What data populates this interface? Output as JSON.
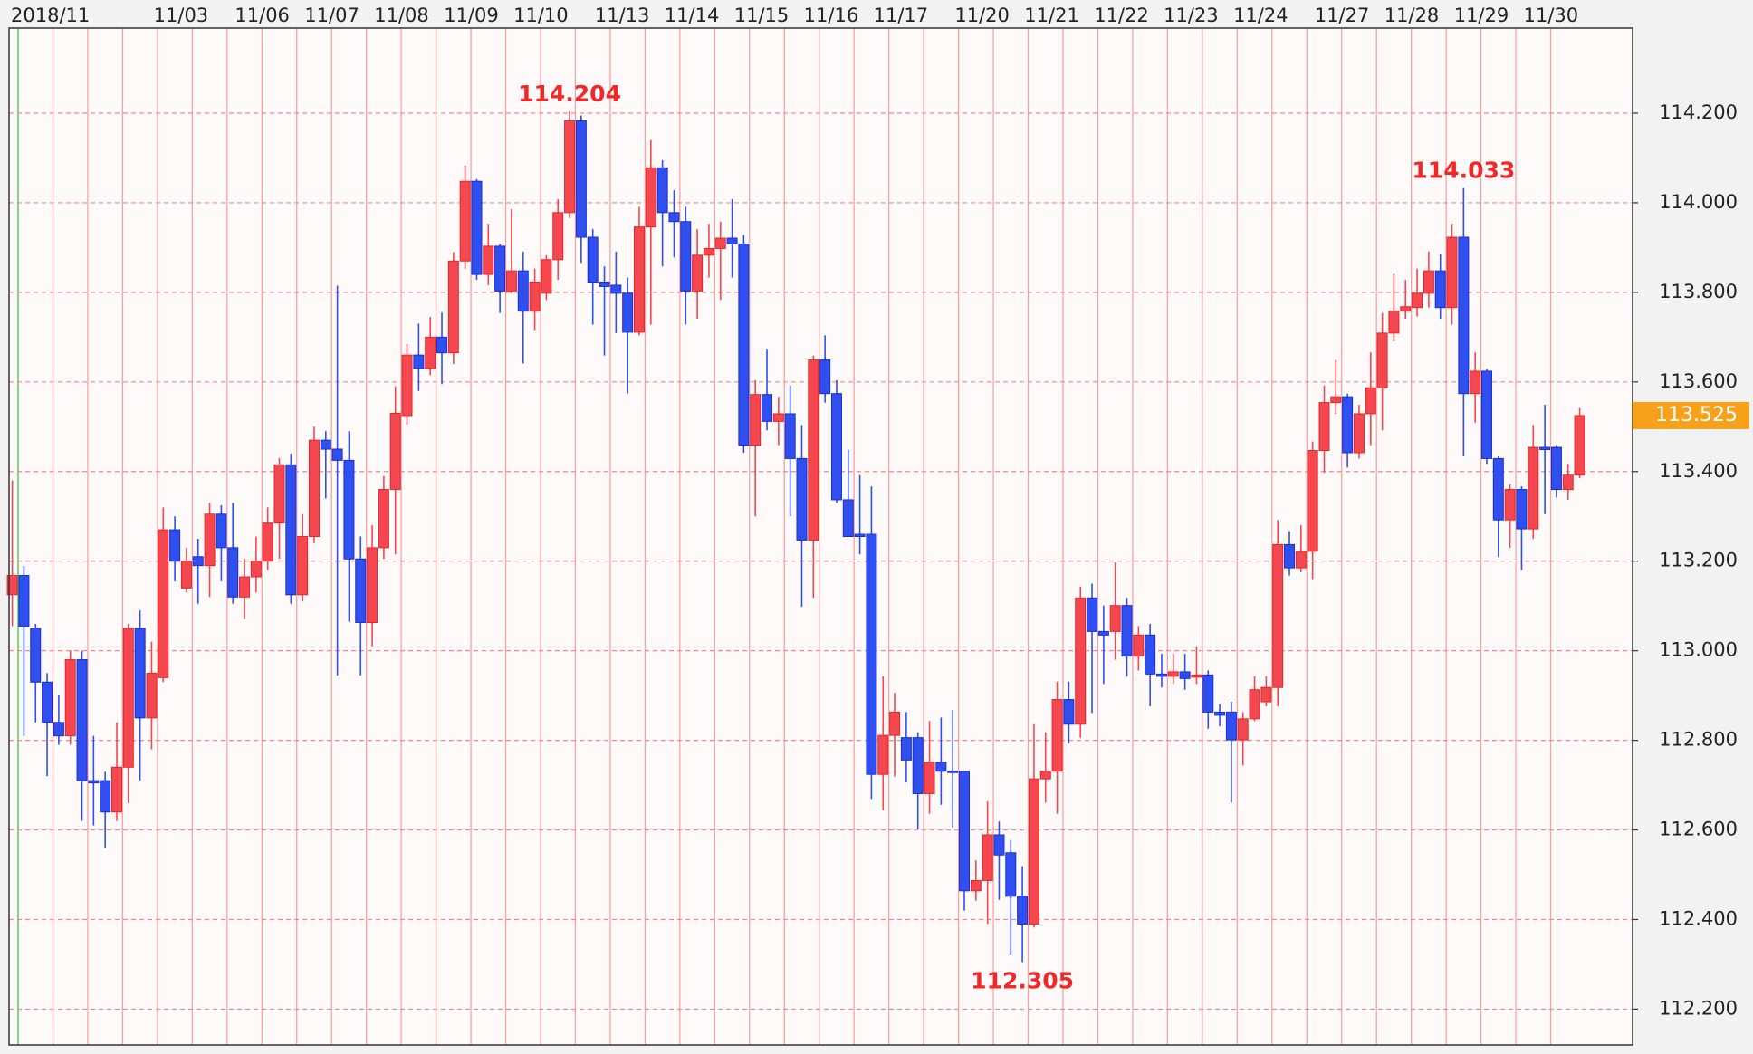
{
  "chart_data": {
    "type": "candlestick",
    "categories": [
      "2018/11",
      null,
      null,
      null,
      null,
      null,
      null,
      null,
      null,
      null,
      null,
      "11/03",
      null,
      null,
      null,
      null,
      null,
      null,
      "11/06",
      null,
      null,
      null,
      null,
      null,
      "11/07",
      null,
      null,
      null,
      null,
      null,
      "11/08",
      null,
      null,
      null,
      null,
      null,
      "11/09",
      null,
      null,
      null,
      null,
      null,
      "11/10",
      null,
      null,
      null,
      null,
      null,
      null,
      "11/13",
      null,
      null,
      null,
      null,
      null,
      "11/14",
      null,
      null,
      null,
      null,
      null,
      "11/15",
      null,
      null,
      null,
      null,
      null,
      "11/16",
      null,
      null,
      null,
      null,
      null,
      "11/17",
      null,
      null,
      null,
      null,
      null,
      null,
      "11/20",
      null,
      null,
      null,
      null,
      null,
      "11/21",
      null,
      null,
      null,
      null,
      null,
      "11/22",
      null,
      null,
      null,
      null,
      null,
      "11/23",
      null,
      null,
      null,
      null,
      null,
      "11/24",
      null,
      null,
      null,
      null,
      null,
      null,
      "11/27",
      null,
      null,
      null,
      null,
      null,
      "11/28",
      null,
      null,
      null,
      null,
      null,
      "11/29",
      null,
      null,
      null,
      null,
      null,
      "11/30",
      null,
      null,
      null,
      null,
      null,
      null
    ],
    "open": [
      113.125,
      113.168,
      113.05,
      112.93,
      112.84,
      112.81,
      112.98,
      112.71,
      112.71,
      112.64,
      112.74,
      113.05,
      112.85,
      112.94,
      113.27,
      113.14,
      113.21,
      113.19,
      113.305,
      113.23,
      113.12,
      113.165,
      113.2,
      113.285,
      113.415,
      113.125,
      113.255,
      113.47,
      113.45,
      113.425,
      113.205,
      113.063,
      113.23,
      113.36,
      113.525,
      113.66,
      113.63,
      113.7,
      113.665,
      113.87,
      114.048,
      113.84,
      113.903,
      113.803,
      113.848,
      113.758,
      113.798,
      113.873,
      113.978,
      114.183,
      113.923,
      113.823,
      113.816,
      113.798,
      113.711,
      113.946,
      114.078,
      113.978,
      113.958,
      113.803,
      113.883,
      113.898,
      113.921,
      113.908,
      113.459,
      113.572,
      113.512,
      113.529,
      113.429,
      113.247,
      113.649,
      113.574,
      113.337,
      113.26,
      113.26,
      112.724,
      112.811,
      112.806,
      112.806,
      112.681,
      112.751,
      112.731,
      112.731,
      112.464,
      112.487,
      112.589,
      112.549,
      112.452,
      112.39,
      112.714,
      112.731,
      112.891,
      112.836,
      113.118,
      113.043,
      113.043,
      113.101,
      112.988,
      113.035,
      112.948,
      112.943,
      112.953,
      112.941,
      112.946,
      112.863,
      112.863,
      112.801,
      112.848,
      112.886,
      112.918,
      113.237,
      113.185,
      113.222,
      113.447,
      113.554,
      113.567,
      113.442,
      113.529,
      113.587,
      113.709,
      113.758,
      113.766,
      113.798,
      113.848,
      113.766,
      113.923,
      113.574,
      113.624,
      113.429,
      113.292,
      113.36,
      113.272,
      113.454,
      113.454,
      113.36,
      113.392
    ],
    "high": [
      113.38,
      113.19,
      113.06,
      112.95,
      112.9,
      113.0,
      113.0,
      112.81,
      112.73,
      112.84,
      113.06,
      113.09,
      113.02,
      113.32,
      113.3,
      113.23,
      113.25,
      113.33,
      113.325,
      113.33,
      113.205,
      113.255,
      113.32,
      113.43,
      113.44,
      113.305,
      113.5,
      113.49,
      113.815,
      113.49,
      113.255,
      113.28,
      113.39,
      113.59,
      113.685,
      113.73,
      113.745,
      113.755,
      113.89,
      114.083,
      114.053,
      113.953,
      113.908,
      113.986,
      113.891,
      113.853,
      113.883,
      114.008,
      114.204,
      114.195,
      113.941,
      113.858,
      113.891,
      113.833,
      113.991,
      114.14,
      114.095,
      114.028,
      113.991,
      113.941,
      113.953,
      113.958,
      114.008,
      113.928,
      113.604,
      113.674,
      113.567,
      113.592,
      113.504,
      113.659,
      113.704,
      113.604,
      113.449,
      113.392,
      113.367,
      112.943,
      112.906,
      112.863,
      112.818,
      112.843,
      112.851,
      112.868,
      112.731,
      112.532,
      112.664,
      112.619,
      112.577,
      112.519,
      112.836,
      112.818,
      112.931,
      112.931,
      113.143,
      113.15,
      113.101,
      113.197,
      113.118,
      113.055,
      113.06,
      112.993,
      112.993,
      112.993,
      113.01,
      112.956,
      112.881,
      112.886,
      112.863,
      112.943,
      112.943,
      113.292,
      113.267,
      113.28,
      113.467,
      113.592,
      113.649,
      113.574,
      113.549,
      113.666,
      113.754,
      113.841,
      113.828,
      113.853,
      113.891,
      113.886,
      113.953,
      114.033,
      113.666,
      113.629,
      113.434,
      113.372,
      113.367,
      113.504,
      113.549,
      113.459,
      113.417,
      113.542
    ],
    "low": [
      113.055,
      112.81,
      112.84,
      112.72,
      112.79,
      112.79,
      112.62,
      112.61,
      112.56,
      112.62,
      112.66,
      112.71,
      112.78,
      112.93,
      113.155,
      113.13,
      113.105,
      113.12,
      113.155,
      113.105,
      113.07,
      113.13,
      113.18,
      113.205,
      113.105,
      113.11,
      113.24,
      113.34,
      112.945,
      113.065,
      112.945,
      113.01,
      113.205,
      113.215,
      113.505,
      113.58,
      113.615,
      113.595,
      113.64,
      113.853,
      113.828,
      113.816,
      113.754,
      113.798,
      113.641,
      113.716,
      113.783,
      113.828,
      113.966,
      113.866,
      113.728,
      113.659,
      113.709,
      113.574,
      113.704,
      113.728,
      113.858,
      113.878,
      113.728,
      113.741,
      113.833,
      113.783,
      113.833,
      113.442,
      113.3,
      113.492,
      113.459,
      113.3,
      113.098,
      113.118,
      113.554,
      113.33,
      113.255,
      113.215,
      112.669,
      112.644,
      112.719,
      112.706,
      112.601,
      112.636,
      112.656,
      112.606,
      112.42,
      112.442,
      112.39,
      112.444,
      112.32,
      112.305,
      112.382,
      112.661,
      112.636,
      112.793,
      112.806,
      112.861,
      112.926,
      112.98,
      112.943,
      112.956,
      112.876,
      112.918,
      112.926,
      112.913,
      112.926,
      112.826,
      112.831,
      112.661,
      112.744,
      112.843,
      112.876,
      112.876,
      113.168,
      113.175,
      113.16,
      113.397,
      113.529,
      113.409,
      113.429,
      113.459,
      113.492,
      113.691,
      113.741,
      113.746,
      113.766,
      113.741,
      113.728,
      113.434,
      113.509,
      113.417,
      113.21,
      113.23,
      113.18,
      113.25,
      113.305,
      113.342,
      113.337,
      113.385
    ],
    "close": [
      113.168,
      113.055,
      112.93,
      112.84,
      112.81,
      112.98,
      112.71,
      112.705,
      112.64,
      112.74,
      113.05,
      112.85,
      112.95,
      113.27,
      113.2,
      113.2,
      113.19,
      113.305,
      113.23,
      113.12,
      113.165,
      113.2,
      113.285,
      113.415,
      113.125,
      113.255,
      113.47,
      113.45,
      113.425,
      113.205,
      113.063,
      113.23,
      113.36,
      113.53,
      113.66,
      113.63,
      113.7,
      113.665,
      113.87,
      114.048,
      113.84,
      113.903,
      113.803,
      113.848,
      113.758,
      113.823,
      113.873,
      113.978,
      114.183,
      113.923,
      113.823,
      113.813,
      113.798,
      113.711,
      113.946,
      114.078,
      113.978,
      113.958,
      113.803,
      113.883,
      113.898,
      113.921,
      113.908,
      113.459,
      113.572,
      113.512,
      113.529,
      113.429,
      113.247,
      113.649,
      113.574,
      113.337,
      113.255,
      113.255,
      112.724,
      112.811,
      112.863,
      112.756,
      112.681,
      112.751,
      112.731,
      112.728,
      112.464,
      112.487,
      112.589,
      112.544,
      112.452,
      112.39,
      112.714,
      112.731,
      112.891,
      112.836,
      113.118,
      113.043,
      113.035,
      113.101,
      112.988,
      113.035,
      112.948,
      112.943,
      112.953,
      112.938,
      112.946,
      112.863,
      112.856,
      112.801,
      112.848,
      112.913,
      112.918,
      113.237,
      113.185,
      113.222,
      113.447,
      113.554,
      113.567,
      113.442,
      113.529,
      113.587,
      113.709,
      113.758,
      113.768,
      113.798,
      113.848,
      113.766,
      113.923,
      113.574,
      113.624,
      113.429,
      113.292,
      113.36,
      113.272,
      113.454,
      113.449,
      113.36,
      113.392,
      113.525
    ],
    "up_color": "#f5474f",
    "down_color": "#2f4ff0",
    "ylim": [
      112.12,
      114.39
    ],
    "yticks": [
      {
        "value": 112.2,
        "label": "112.200"
      },
      {
        "value": 112.4,
        "label": "112.400"
      },
      {
        "value": 112.6,
        "label": "112.600"
      },
      {
        "value": 112.8,
        "label": "112.800"
      },
      {
        "value": 113.0,
        "label": "113.000"
      },
      {
        "value": 113.2,
        "label": "113.200"
      },
      {
        "value": 113.4,
        "label": "113.400"
      },
      {
        "value": 113.6,
        "label": "113.600"
      },
      {
        "value": 113.8,
        "label": "113.800"
      },
      {
        "value": 114.0,
        "label": "114.000"
      },
      {
        "value": 114.2,
        "label": "114.200"
      }
    ],
    "grid": true,
    "annotations": [
      {
        "label": "114.204",
        "value": 114.204,
        "index": 48,
        "position": "above"
      },
      {
        "label": "114.033",
        "value": 114.033,
        "index": 125,
        "position": "above"
      },
      {
        "label": "112.305",
        "value": 112.305,
        "index": 87,
        "position": "below"
      }
    ],
    "last_price": {
      "value": 113.525,
      "label": "113.525"
    },
    "last_price_color": "#f7a11a"
  }
}
